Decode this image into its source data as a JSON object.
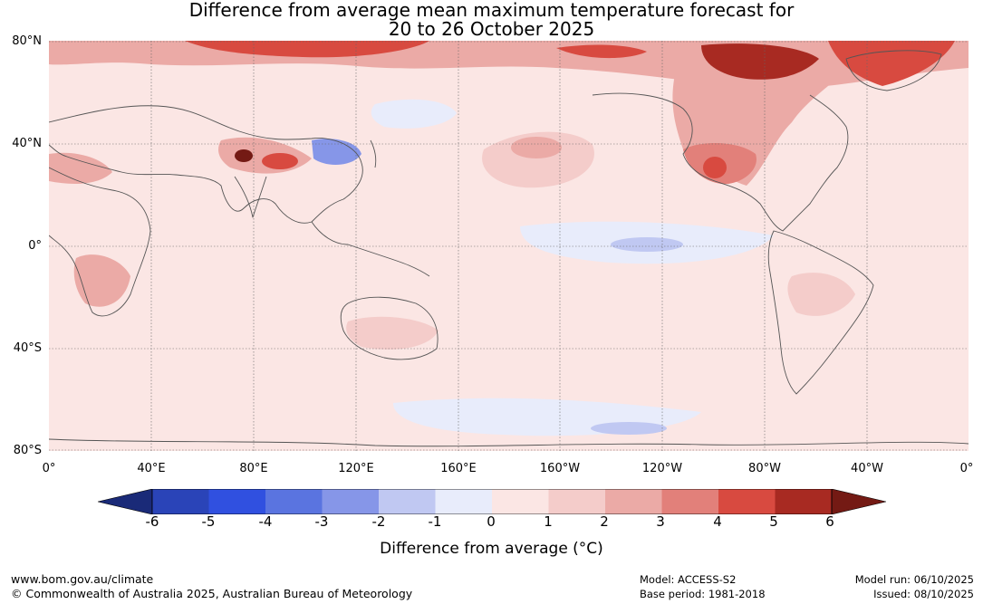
{
  "title": {
    "line1": "Difference from average mean maximum temperature forecast for",
    "line2": "20 to 26 October 2025"
  },
  "axes": {
    "lat_labels": [
      "80°N",
      "40°N",
      "0°",
      "40°S",
      "80°S"
    ],
    "lon_labels": [
      "0°",
      "40°E",
      "80°E",
      "120°E",
      "160°E",
      "160°W",
      "120°W",
      "80°W",
      "40°W",
      "0°"
    ]
  },
  "colorbar": {
    "ticks": [
      "-6",
      "-5",
      "-4",
      "-3",
      "-2",
      "-1",
      "0",
      "1",
      "2",
      "3",
      "4",
      "5",
      "6"
    ],
    "colors": [
      "#1a2a78",
      "#2a44b8",
      "#3050e0",
      "#5a74e0",
      "#8696e8",
      "#c0c8f2",
      "#e8ecfb",
      "#fbe6e4",
      "#f4ccca",
      "#ebaaa6",
      "#e2807a",
      "#d84a40",
      "#a82a22",
      "#741a14"
    ],
    "label": "Difference from average (°C)"
  },
  "footer": {
    "url": "www.bom.gov.au/climate",
    "copyright": "© Commonwealth of Australia 2025, Australian Bureau of Meteorology",
    "model": "Model: ACCESS-S2",
    "base_period": "Base period: 1981-2018",
    "model_run": "Model run: 06/10/2025",
    "issued": "Issued: 08/10/2025"
  }
}
